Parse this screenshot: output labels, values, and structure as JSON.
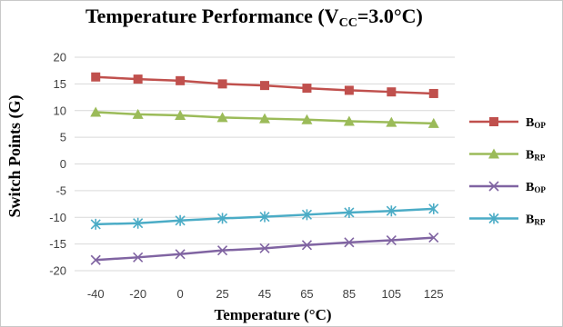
{
  "chart_data": {
    "type": "line",
    "title": {
      "prefix": "Temperature Performance (V",
      "sub": "CC",
      "suffix": "=3.0°C)"
    },
    "xlabel": "Temperature (°C)",
    "ylabel": "Switch Points (G)",
    "categories": [
      "-40",
      "-20",
      "0",
      "25",
      "45",
      "65",
      "85",
      "105",
      "125"
    ],
    "ylim": [
      -20,
      20
    ],
    "yticks": [
      20,
      15,
      10,
      5,
      0,
      -5,
      -10,
      -15,
      -20
    ],
    "grid": true,
    "legend_position": "right",
    "series": [
      {
        "name": "B",
        "sub": "OP",
        "color": "#c0504d",
        "marker": "square",
        "values": [
          16.3,
          15.9,
          15.6,
          15.0,
          14.7,
          14.2,
          13.8,
          13.5,
          13.2
        ]
      },
      {
        "name": "B",
        "sub": "RP",
        "color": "#9bbb59",
        "marker": "triangle",
        "values": [
          9.7,
          9.3,
          9.1,
          8.7,
          8.5,
          8.3,
          8.0,
          7.8,
          7.6
        ]
      },
      {
        "name": "B",
        "sub": "OP",
        "color": "#8064a2",
        "marker": "x",
        "values": [
          -18.0,
          -17.5,
          -16.9,
          -16.2,
          -15.8,
          -15.2,
          -14.7,
          -14.3,
          -13.8
        ]
      },
      {
        "name": "B",
        "sub": "RP",
        "color": "#4bacc6",
        "marker": "star",
        "values": [
          -11.3,
          -11.1,
          -10.6,
          -10.2,
          -9.9,
          -9.5,
          -9.1,
          -8.8,
          -8.4
        ]
      }
    ]
  }
}
